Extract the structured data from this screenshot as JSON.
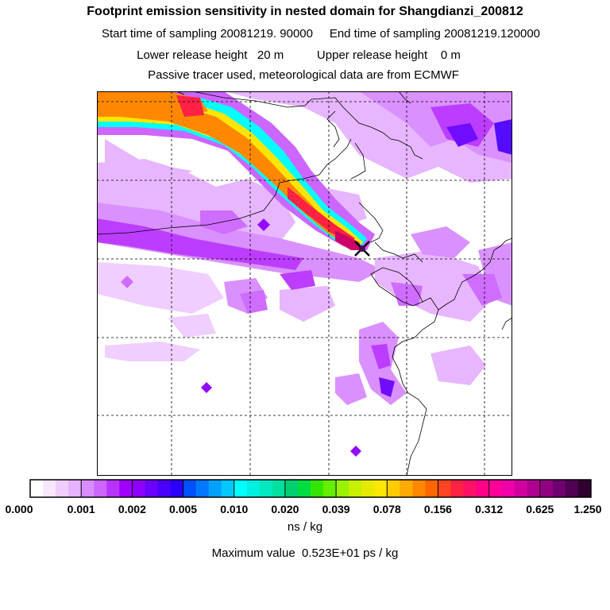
{
  "header": {
    "title": "Footprint emission sensitivity in nested domain for Shangdianzi_200812",
    "line2": "Start time of sampling 20081219. 90000     End time of sampling 20081219.120000",
    "line3": "Lower release height   20 m          Upper release height    0 m",
    "line4": "Passive tracer used, meteorological data are from ECMWF"
  },
  "colorbar": {
    "tick_labels": [
      "0.000",
      "0.001",
      "0.002",
      "0.005",
      "0.010",
      "0.020",
      "0.039",
      "0.078",
      "0.156",
      "0.312",
      "0.625",
      "1.250"
    ],
    "colors": [
      "#ffffff",
      "#f9e6ff",
      "#f0ccff",
      "#e6b3ff",
      "#d98cff",
      "#cc66ff",
      "#b933ff",
      "#a000ff",
      "#8c00ff",
      "#6a00ff",
      "#4a00ff",
      "#2a00ff",
      "#0050ff",
      "#0078ff",
      "#00a0ff",
      "#00c8ff",
      "#00ffff",
      "#00f0e0",
      "#00e8c0",
      "#00e0a0",
      "#00d070",
      "#00dd40",
      "#33e600",
      "#66ee00",
      "#99f200",
      "#c8f000",
      "#e6ea00",
      "#ffe600",
      "#ffcc00",
      "#ffaa00",
      "#ff8800",
      "#ff6600",
      "#ff4422",
      "#ff2244",
      "#ff1166",
      "#ff0088",
      "#ff0099",
      "#ee00aa",
      "#d000a0",
      "#b00090",
      "#900080",
      "#700070",
      "#500050",
      "#300030"
    ],
    "unit": "ns / kg"
  },
  "footer": {
    "max_value": "Maximum value  0.523E+01 ps / kg"
  },
  "map": {
    "receptor_marker": "x-marker-icon",
    "plume_colors": [
      "#cc66ff",
      "#00ffff",
      "#ffe600",
      "#ff8800",
      "#ff2244",
      "#cc0066"
    ],
    "background_fill": "#d98cff"
  }
}
